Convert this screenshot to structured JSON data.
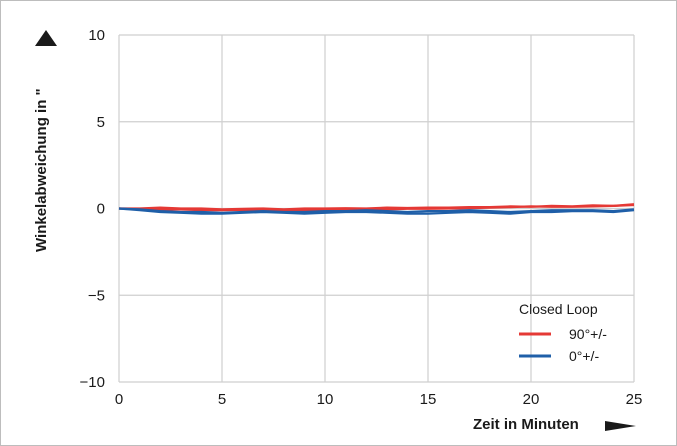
{
  "chart_data": {
    "type": "line",
    "xlabel": "Zeit in Minuten",
    "ylabel": "Winkelabweichung in \"",
    "xlim": [
      0,
      25
    ],
    "ylim": [
      -10,
      10
    ],
    "x_ticks": [
      "0",
      "5",
      "10",
      "15",
      "20",
      "25"
    ],
    "y_ticks": [
      "10",
      "5",
      "0",
      "−5",
      "−10"
    ],
    "grid": true,
    "legend": {
      "title": "Closed Loop",
      "placement": "bottom-right"
    },
    "colors": {
      "red": "#e53935",
      "blue": "#1f5fa8",
      "grid": "#cfcfcf"
    },
    "series": [
      {
        "name": "90°+/-",
        "color": "#e53935",
        "x": [
          0,
          1,
          2,
          3,
          4,
          5,
          6,
          7,
          8,
          9,
          10,
          11,
          12,
          13,
          14,
          15,
          16,
          17,
          18,
          19,
          20,
          21,
          22,
          23,
          24,
          25
        ],
        "y": [
          0,
          0,
          0.05,
          0,
          0,
          -0.05,
          -0.02,
          0,
          -0.05,
          0,
          0,
          0.02,
          0,
          0.05,
          0.03,
          0.05,
          0.05,
          0.08,
          0.08,
          0.12,
          0.1,
          0.15,
          0.12,
          0.18,
          0.15,
          0.25
        ]
      },
      {
        "name": "90°+/-",
        "color": "#e53935",
        "x": [
          0,
          1,
          2,
          3,
          4,
          5,
          6,
          7,
          8,
          9,
          10,
          11,
          12,
          13,
          14,
          15,
          16,
          17,
          18,
          19,
          20,
          21,
          22,
          23,
          24,
          25
        ],
        "y": [
          0,
          -0.02,
          -0.05,
          -0.05,
          -0.1,
          -0.1,
          -0.08,
          -0.1,
          -0.08,
          -0.12,
          -0.05,
          -0.05,
          -0.03,
          -0.05,
          -0.02,
          -0.02,
          0,
          0.02,
          0.05,
          0.08,
          0.12,
          0.1,
          0.1,
          0.12,
          0.15,
          0.2
        ]
      },
      {
        "name": "0°+/-",
        "color": "#1f5fa8",
        "x": [
          0,
          1,
          2,
          3,
          4,
          5,
          6,
          7,
          8,
          9,
          10,
          11,
          12,
          13,
          14,
          15,
          16,
          17,
          18,
          19,
          20,
          21,
          22,
          23,
          24,
          25
        ],
        "y": [
          0,
          -0.1,
          -0.2,
          -0.25,
          -0.3,
          -0.3,
          -0.25,
          -0.2,
          -0.25,
          -0.3,
          -0.25,
          -0.2,
          -0.2,
          -0.25,
          -0.3,
          -0.3,
          -0.25,
          -0.2,
          -0.25,
          -0.3,
          -0.2,
          -0.2,
          -0.15,
          -0.15,
          -0.2,
          -0.1
        ]
      },
      {
        "name": "0°+/-",
        "color": "#1f5fa8",
        "x": [
          0,
          1,
          2,
          3,
          4,
          5,
          6,
          7,
          8,
          9,
          10,
          11,
          12,
          13,
          14,
          15,
          16,
          17,
          18,
          19,
          20,
          21,
          22,
          23,
          24,
          25
        ],
        "y": [
          0,
          -0.05,
          -0.15,
          -0.2,
          -0.2,
          -0.25,
          -0.2,
          -0.15,
          -0.2,
          -0.2,
          -0.15,
          -0.15,
          -0.1,
          -0.15,
          -0.2,
          -0.15,
          -0.15,
          -0.1,
          -0.15,
          -0.2,
          -0.15,
          -0.1,
          -0.1,
          -0.1,
          -0.15,
          -0.05
        ]
      }
    ],
    "legend_entries": [
      {
        "label": "90°+/-",
        "color": "#e53935"
      },
      {
        "label": "0°+/-",
        "color": "#1f5fa8"
      }
    ]
  }
}
